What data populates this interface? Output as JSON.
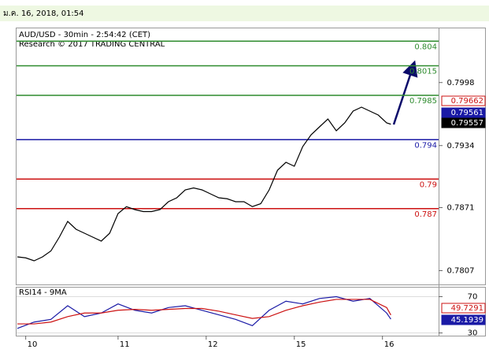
{
  "header": {
    "datetime": "ม.ค. 16, 2018, 01:54"
  },
  "chart_data": [
    {
      "type": "line",
      "title": "AUD/USD - 30min - 2:54:42 (CET)",
      "subtitle": "Research © 2017 TRADING CENTRAL",
      "x": [
        0,
        2,
        4,
        6,
        8,
        10,
        12,
        14,
        16,
        18,
        20,
        22,
        24,
        26,
        28,
        30,
        32,
        34,
        36,
        38,
        40,
        42,
        44,
        46,
        48,
        50,
        52,
        54,
        56,
        58,
        60,
        62,
        64,
        66,
        68,
        70,
        72,
        74,
        76,
        78,
        80,
        82,
        84,
        86,
        88,
        89
      ],
      "xlim": [
        0,
        100
      ],
      "xticks": [
        {
          "value": 2,
          "label": "10"
        },
        {
          "value": 24,
          "label": "11"
        },
        {
          "value": 45,
          "label": "12"
        },
        {
          "value": 66,
          "label": "15"
        },
        {
          "value": 87,
          "label": "16"
        }
      ],
      "ylim": [
        0.7793,
        0.8053
      ],
      "yticks": [
        0.7998,
        0.7934,
        0.7871,
        0.7807
      ],
      "series": [
        {
          "color": "#000000",
          "values": [
            0.7821,
            0.782,
            0.7817,
            0.7821,
            0.7827,
            0.7841,
            0.7857,
            0.7849,
            0.7845,
            0.7841,
            0.7837,
            0.7845,
            0.7865,
            0.7872,
            0.7869,
            0.7867,
            0.7867,
            0.7869,
            0.7877,
            0.7881,
            0.7889,
            0.7891,
            0.7889,
            0.7885,
            0.7881,
            0.788,
            0.7877,
            0.7877,
            0.7872,
            0.7875,
            0.7889,
            0.7909,
            0.7917,
            0.7913,
            0.7933,
            0.7945,
            0.7953,
            0.7961,
            0.7949,
            0.7957,
            0.7969,
            0.7973,
            0.7969,
            0.7965,
            0.7957,
            0.79557
          ]
        }
      ],
      "levels": [
        {
          "value": 0.804,
          "color": "#2e8b2e"
        },
        {
          "value": 0.8015,
          "color": "#2e8b2e"
        },
        {
          "value": 0.7985,
          "color": "#2e8b2e"
        },
        {
          "value": 0.794,
          "color": "#1a1aa6"
        },
        {
          "value": 0.79,
          "color": "#cc1111"
        },
        {
          "value": 0.787,
          "color": "#cc1111"
        }
      ],
      "price_labels": [
        {
          "value": 0.79662,
          "color": "#cc1111",
          "filled": false
        },
        {
          "value": 0.79561,
          "color": "#1a1aa6",
          "filled": true
        },
        {
          "value": 0.79557,
          "color": "#000000",
          "filled": true
        }
      ]
    },
    {
      "type": "line",
      "title": "RSI14 - 9MA",
      "x": [
        0,
        4,
        8,
        12,
        16,
        20,
        24,
        28,
        32,
        36,
        40,
        44,
        48,
        52,
        56,
        60,
        64,
        68,
        72,
        76,
        80,
        84,
        88,
        89
      ],
      "xlim": [
        0,
        100
      ],
      "ylim": [
        27,
        80
      ],
      "yticks": [
        70,
        30
      ],
      "series": [
        {
          "color": "#1a1aa6",
          "values": [
            35,
            42,
            45,
            60,
            48,
            52,
            62,
            55,
            52,
            58,
            60,
            55,
            50,
            45,
            38,
            55,
            65,
            62,
            68,
            70,
            65,
            68,
            52,
            45.1939
          ]
        },
        {
          "color": "#cc1111",
          "values": [
            40,
            40,
            42,
            48,
            52,
            52,
            55,
            56,
            55,
            56,
            57,
            57,
            54,
            50,
            46,
            48,
            55,
            60,
            64,
            67,
            67,
            67,
            58,
            49.7291
          ]
        }
      ],
      "end_labels": [
        {
          "value": 49.7291,
          "color": "#cc1111",
          "filled": false
        },
        {
          "value": 45.1939,
          "color": "#1a1aa6",
          "filled": true
        }
      ]
    }
  ]
}
